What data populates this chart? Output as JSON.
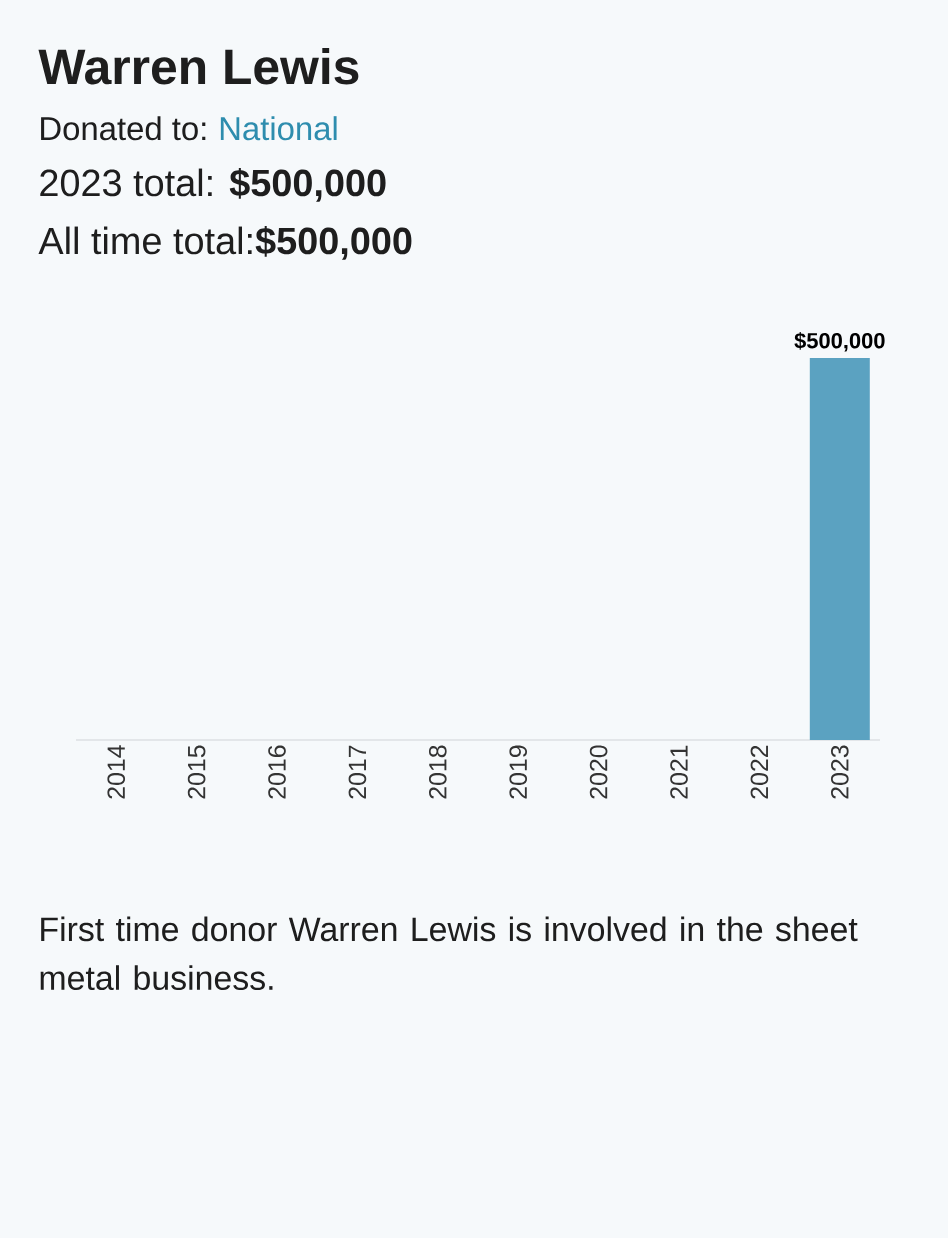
{
  "chart_data": {
    "type": "bar",
    "title": "Warren Lewis",
    "subtitle": "Donated to:",
    "annotations": [
      "National",
      "2023 total: **$500,000**",
      "All time total:**$500,000**",
      "First time donor Warren Lewis is involved in the sheet metal business."
    ],
    "categories": [
      "2014",
      "2015",
      "2016",
      "2017",
      "2018",
      "2019",
      "2020",
      "2021",
      "2022",
      "2023"
    ],
    "values": [
      0,
      0,
      0,
      0,
      0,
      0,
      0,
      0,
      0,
      500000
    ],
    "value_labels": [
      null,
      null,
      null,
      null,
      null,
      null,
      null,
      null,
      null,
      "$500,000"
    ],
    "color": "#5ba2c1"
  }
}
